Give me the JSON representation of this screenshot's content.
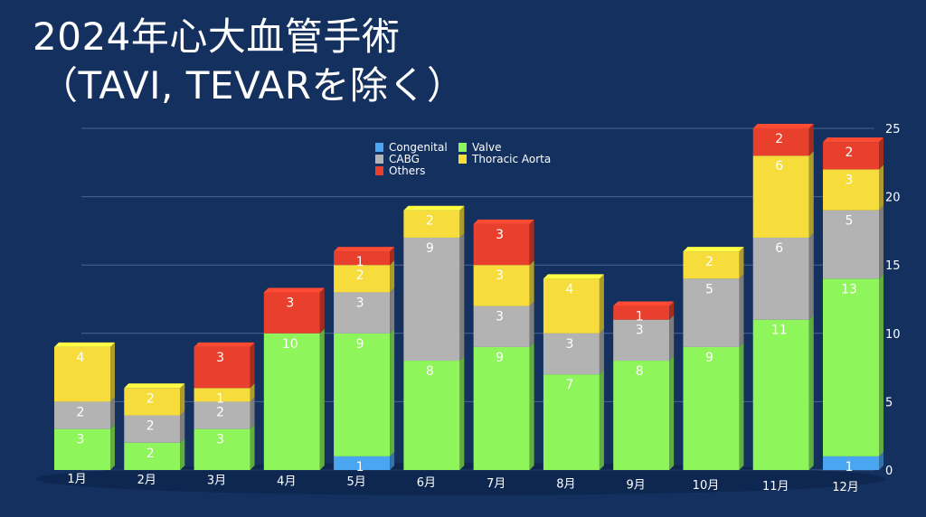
{
  "title": {
    "line1": "2024年心大血管手術",
    "line2": "（TAVI, TEVARを除く）"
  },
  "chart_data": {
    "type": "bar",
    "stacked": true,
    "categories": [
      "1月",
      "2月",
      "3月",
      "4月",
      "5月",
      "6月",
      "7月",
      "8月",
      "9月",
      "10月",
      "11月",
      "12月"
    ],
    "series": [
      {
        "name": "Congenital",
        "color": "#4aa6f0",
        "values": [
          0,
          0,
          0,
          0,
          1,
          0,
          0,
          0,
          0,
          0,
          0,
          1
        ]
      },
      {
        "name": "Valve",
        "color": "#8ef55a",
        "values": [
          3,
          2,
          3,
          10,
          9,
          8,
          9,
          7,
          8,
          9,
          11,
          13
        ]
      },
      {
        "name": "CABG",
        "color": "#b3b3b3",
        "values": [
          2,
          2,
          2,
          0,
          3,
          9,
          3,
          3,
          3,
          5,
          6,
          5
        ]
      },
      {
        "name": "Thoracic Aorta",
        "color": "#f7dd3c",
        "values": [
          4,
          2,
          1,
          0,
          2,
          2,
          3,
          4,
          0,
          2,
          6,
          3
        ]
      },
      {
        "name": "Others",
        "color": "#e8402d",
        "values": [
          0,
          0,
          3,
          3,
          1,
          0,
          3,
          0,
          1,
          0,
          2,
          2
        ]
      }
    ],
    "ylim": [
      0,
      25
    ],
    "yticks": [
      0,
      5,
      10,
      15,
      20,
      25
    ],
    "y_axis_side": "right",
    "grid": true,
    "legend": {
      "position": "top-center",
      "order": [
        "Congenital",
        "Valve",
        "CABG",
        "Thoracic Aorta",
        "Others"
      ]
    }
  }
}
